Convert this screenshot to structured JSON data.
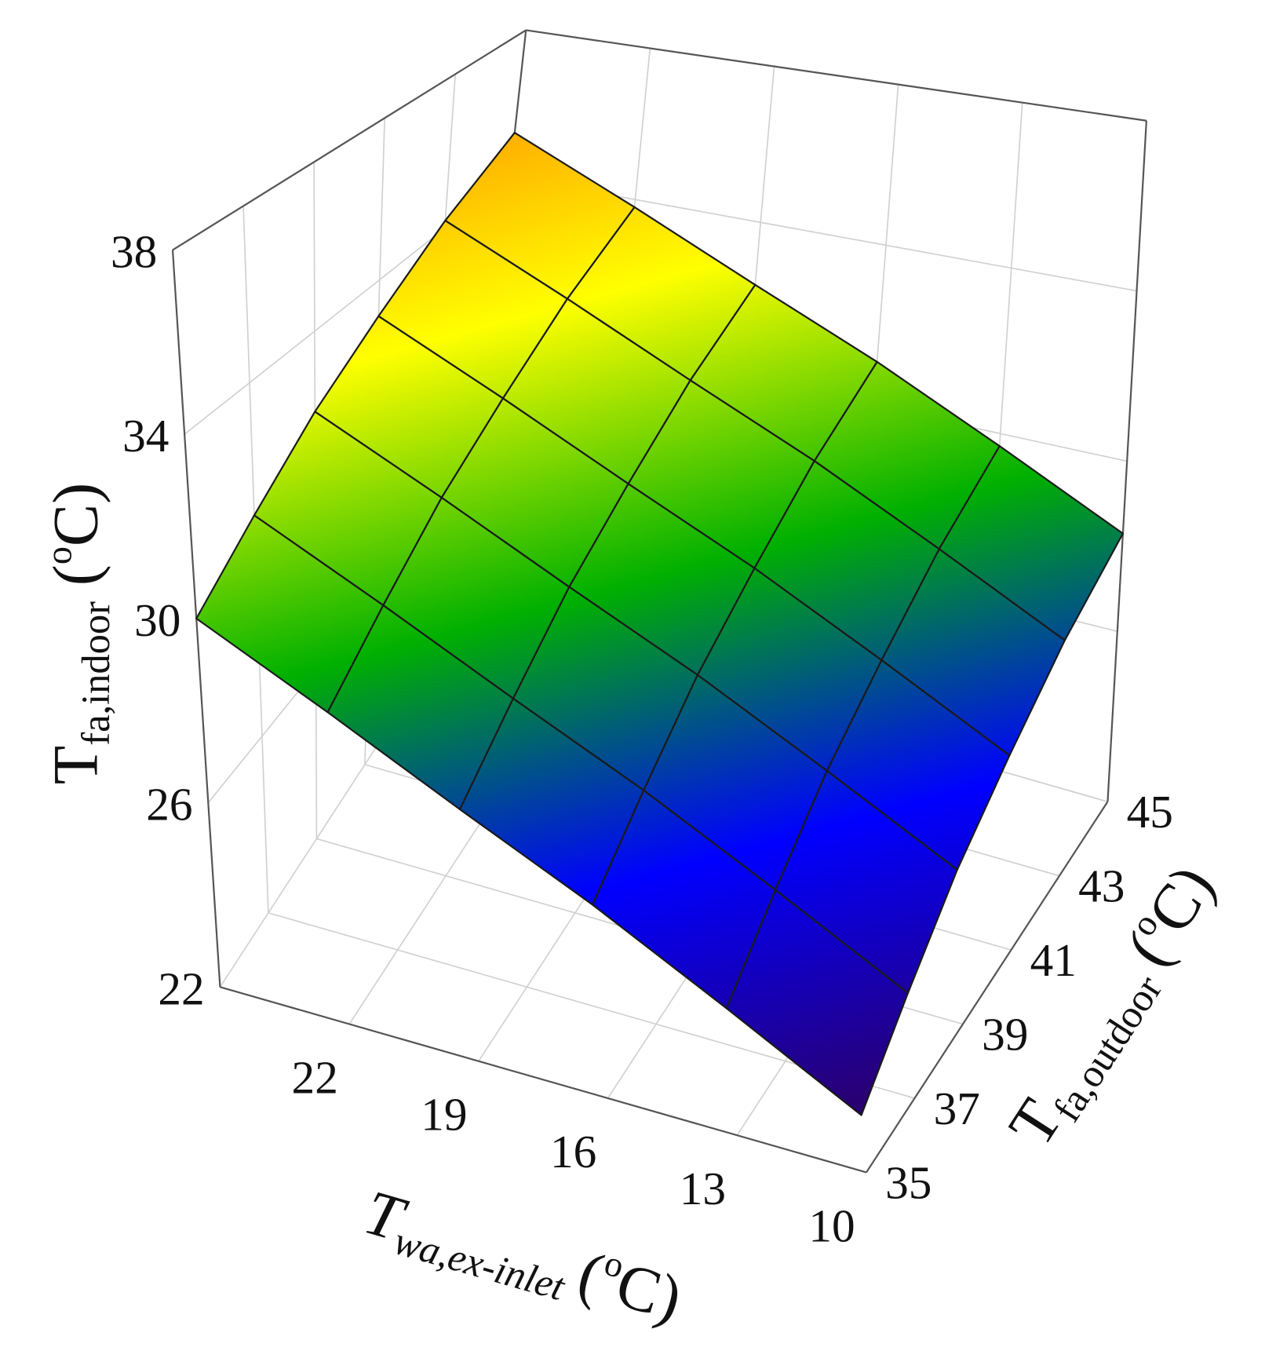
{
  "chart_data": {
    "type": "surface",
    "x": [
      10,
      13,
      16,
      19,
      22,
      25
    ],
    "y": [
      35,
      37,
      39,
      41,
      43,
      45
    ],
    "z": [
      [
        23.1,
        24.5,
        25.9,
        27.2,
        28.6,
        30.0
      ],
      [
        24.1,
        25.5,
        26.9,
        28.2,
        29.6,
        31.0
      ],
      [
        25.2,
        26.6,
        28.0,
        29.3,
        30.7,
        32.1
      ],
      [
        26.2,
        27.6,
        29.0,
        30.3,
        31.7,
        33.1
      ],
      [
        27.3,
        28.7,
        30.1,
        31.4,
        32.8,
        34.2
      ],
      [
        28.3,
        29.7,
        31.1,
        32.4,
        33.8,
        35.2
      ]
    ],
    "xlim": [
      10,
      25
    ],
    "xticks": [
      10,
      13,
      16,
      19,
      22
    ],
    "ylim": [
      35,
      45
    ],
    "yticks": [
      35,
      37,
      39,
      41,
      43,
      45
    ],
    "zlim": [
      22,
      38
    ],
    "zticks": [
      22,
      26,
      30,
      34,
      38
    ],
    "grid": true,
    "colormap": [
      "#2b006b",
      "#0000ff",
      "#00b000",
      "#ffff00",
      "#ff8000"
    ],
    "xlabel": {
      "symbol": "T",
      "subscript": "wa,ex-inlet",
      "unit_open": "(",
      "unit_sup": "o",
      "unit_close": "C)"
    },
    "ylabel": {
      "symbol": "T",
      "subscript": "fa,outdoor",
      "unit_open": "(",
      "unit_sup": "o",
      "unit_close": "C)"
    },
    "zlabel": {
      "symbol": "T",
      "subscript": "fa,indoor",
      "unit_open": "(",
      "unit_sup": "o",
      "unit_close": "C)"
    }
  }
}
